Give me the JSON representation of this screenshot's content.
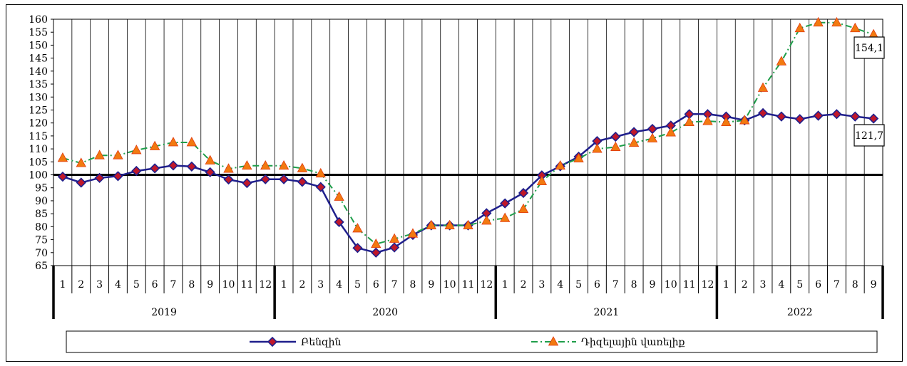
{
  "chart_data": {
    "type": "line",
    "title": "",
    "xlabel": "",
    "ylabel": "",
    "ylim": [
      65,
      160
    ],
    "ytick_step": 5,
    "grid": "vertical",
    "reference_line": 100,
    "groups": [
      {
        "label": "2019",
        "months": [
          "1",
          "2",
          "3",
          "4",
          "5",
          "6",
          "7",
          "8",
          "9",
          "10",
          "11",
          "12"
        ]
      },
      {
        "label": "2020",
        "months": [
          "1",
          "2",
          "3",
          "4",
          "5",
          "6",
          "7",
          "8",
          "9",
          "10",
          "11",
          "12"
        ]
      },
      {
        "label": "2021",
        "months": [
          "1",
          "2",
          "3",
          "4",
          "5",
          "6",
          "7",
          "8",
          "9",
          "10",
          "11",
          "12"
        ]
      },
      {
        "label": "2022",
        "months": [
          "1",
          "2",
          "3",
          "4",
          "5",
          "6",
          "7",
          "8",
          "9"
        ]
      }
    ],
    "series": [
      {
        "name": "Բենզին",
        "color": "#1f1f8c",
        "marker": "diamond",
        "marker_color": "#c0182a",
        "values": [
          99.3,
          97.0,
          98.8,
          99.5,
          101.5,
          102.5,
          103.6,
          103.2,
          101.0,
          98.2,
          96.8,
          98.3,
          98.3,
          97.3,
          95.3,
          81.8,
          71.8,
          70.0,
          72.0,
          76.8,
          80.5,
          80.5,
          80.5,
          85.2,
          89.0,
          93.0,
          99.8,
          103.3,
          107.0,
          113.0,
          114.7,
          116.5,
          117.7,
          119.0,
          123.4,
          123.4,
          122.5,
          121.0,
          123.8,
          122.5,
          121.5,
          122.8,
          123.4,
          122.5,
          121.7
        ]
      },
      {
        "name": "Դիզելային վառելիք",
        "color": "#1e9e4a",
        "marker": "triangle",
        "marker_color": "#f27a10",
        "values": [
          106.5,
          104.5,
          107.5,
          107.5,
          109.5,
          111.0,
          112.5,
          112.5,
          105.5,
          102.3,
          103.5,
          103.5,
          103.5,
          102.5,
          100.5,
          91.5,
          79.3,
          73.3,
          75.3,
          77.3,
          80.5,
          80.5,
          80.5,
          82.3,
          83.3,
          86.8,
          97.5,
          103.5,
          106.3,
          110.0,
          110.7,
          112.3,
          114.0,
          116.3,
          120.3,
          120.7,
          120.3,
          121.0,
          133.5,
          143.7,
          156.5,
          158.7,
          158.7,
          156.5,
          154.1
        ]
      }
    ],
    "annotations": [
      {
        "series": 1,
        "index": 44,
        "text": "154,1"
      },
      {
        "series": 0,
        "index": 44,
        "text": "121,7"
      }
    ],
    "legend": {
      "position": "bottom"
    }
  }
}
